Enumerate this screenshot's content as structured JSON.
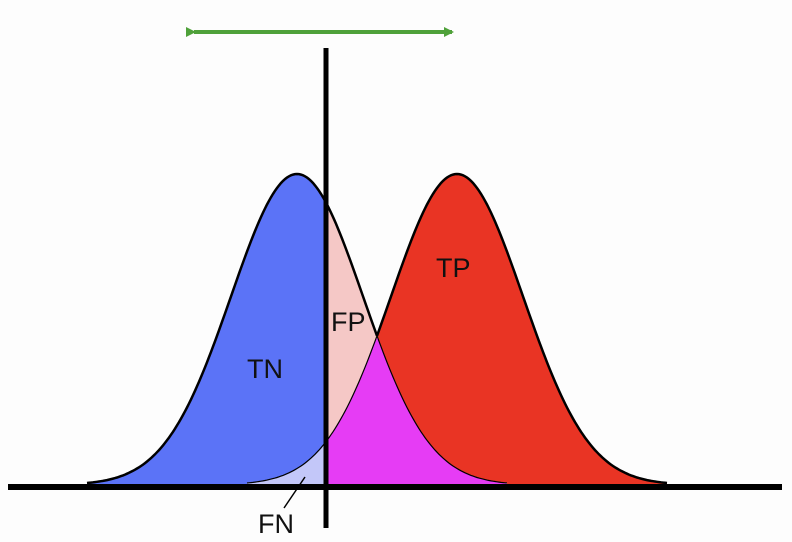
{
  "diagram": {
    "labels": {
      "tn": "TN",
      "fp": "FP",
      "tp": "TP",
      "fn": "FN"
    },
    "colors": {
      "background": "#fdfdfd",
      "negative_curve_fill": "#5b73f7",
      "positive_curve_fill": "#e93424",
      "false_positive_fill": "#f5c8c6",
      "false_negative_fill": "#c3c7f9",
      "overlap_fill": "#e63cf5",
      "axis": "#000000",
      "threshold_arrow": "#4fa13a"
    }
  }
}
